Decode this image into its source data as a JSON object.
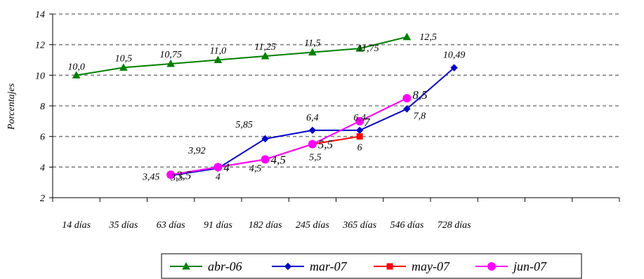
{
  "chart_data": {
    "type": "line",
    "title": "",
    "xlabel": "",
    "ylabel": "Porcentajes",
    "ylim": [
      2,
      14
    ],
    "yticks": [
      "2",
      "4",
      "6",
      "8",
      "10",
      "12",
      "14"
    ],
    "grid": true,
    "legend_position": "bottom",
    "categories": [
      "14 días",
      "35 días",
      "63 días",
      "91 días",
      "182 días",
      "245 días",
      "365 días",
      "546 días",
      "728 días"
    ],
    "series": [
      {
        "name": "abr-06",
        "color": "#008000",
        "marker": "triangle",
        "values": [
          10.0,
          10.5,
          10.75,
          11.0,
          11.25,
          11.5,
          11.75,
          12.5,
          null
        ],
        "labels": [
          "10,0",
          "10,5",
          "10,75",
          "11,0",
          "11,25",
          "11,5",
          "11,75",
          "12,5",
          null
        ]
      },
      {
        "name": "mar-07",
        "color": "#0000CC",
        "marker": "diamond",
        "values": [
          null,
          null,
          3.45,
          3.92,
          5.85,
          6.4,
          6.4,
          7.8,
          10.49
        ],
        "labels": [
          null,
          null,
          "3,45",
          "3,92",
          "5,85",
          "6,4",
          "6,4",
          "7,8",
          "10,49"
        ]
      },
      {
        "name": "may-07",
        "color": "#FF0000",
        "marker": "square",
        "values": [
          null,
          null,
          3.5,
          4.0,
          4.5,
          5.5,
          6.0,
          null,
          null
        ],
        "labels": [
          null,
          null,
          "3,5",
          "4",
          "4,5",
          "5,5",
          "6",
          null,
          null
        ]
      },
      {
        "name": "jun-07",
        "color": "#FF00FF",
        "marker": "circle",
        "values": [
          null,
          null,
          3.5,
          4.0,
          4.5,
          5.5,
          7.0,
          8.5,
          null
        ],
        "labels": [
          null,
          null,
          "3,5",
          "4",
          "4,5",
          "5,5",
          "7",
          "8,5",
          null
        ]
      }
    ]
  }
}
